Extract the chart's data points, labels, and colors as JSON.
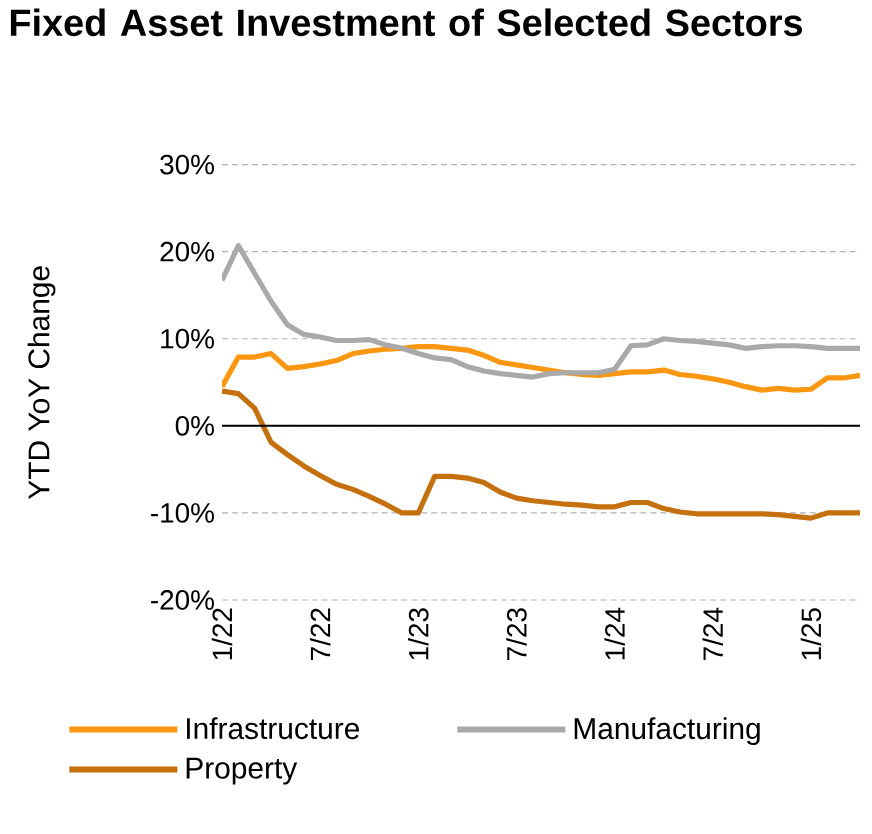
{
  "chart_data": {
    "type": "line",
    "title": "Fixed Asset Investment of Selected Sectors",
    "ylabel": "YTD YoY Change",
    "x": [
      "2022-01",
      "2022-02",
      "2022-03",
      "2022-04",
      "2022-05",
      "2022-06",
      "2022-07",
      "2022-08",
      "2022-09",
      "2022-10",
      "2022-11",
      "2022-12",
      "2023-01",
      "2023-02",
      "2023-03",
      "2023-04",
      "2023-05",
      "2023-06",
      "2023-07",
      "2023-08",
      "2023-09",
      "2023-10",
      "2023-11",
      "2023-12",
      "2024-01",
      "2024-02",
      "2024-03",
      "2024-04",
      "2024-05",
      "2024-06",
      "2024-07",
      "2024-08",
      "2024-09",
      "2024-10",
      "2024-11",
      "2024-12",
      "2025-01",
      "2025-02",
      "2025-03",
      "2025-04"
    ],
    "series": [
      {
        "name": "Infrastructure",
        "color": "#fb960f",
        "values": [
          4.5,
          7.9,
          7.9,
          8.3,
          6.6,
          6.8,
          7.1,
          7.5,
          8.3,
          8.6,
          8.8,
          8.9,
          9.1,
          9.1,
          8.9,
          8.7,
          8.1,
          7.3,
          7.0,
          6.7,
          6.4,
          6.1,
          5.9,
          5.8,
          6.0,
          6.2,
          6.2,
          6.4,
          5.9,
          5.7,
          5.4,
          5.0,
          4.5,
          4.1,
          4.3,
          4.1,
          4.2,
          5.5,
          5.5,
          5.8
        ]
      },
      {
        "name": "Manufacturing",
        "color": "#a9a9a9",
        "values": [
          16.7,
          20.7,
          17.5,
          14.3,
          11.6,
          10.5,
          10.2,
          9.8,
          9.8,
          9.9,
          9.3,
          8.9,
          8.3,
          7.8,
          7.6,
          6.8,
          6.3,
          6.0,
          5.8,
          5.6,
          6.0,
          6.1,
          6.1,
          6.1,
          6.5,
          9.2,
          9.3,
          10.0,
          9.8,
          9.7,
          9.5,
          9.3,
          8.9,
          9.1,
          9.2,
          9.2,
          9.1,
          8.9,
          8.9,
          8.9
        ]
      },
      {
        "name": "Property",
        "color": "#c5700e",
        "values": [
          4.0,
          3.7,
          2.0,
          -1.9,
          -3.3,
          -4.6,
          -5.7,
          -6.7,
          -7.3,
          -8.1,
          -9.0,
          -10.0,
          -10.0,
          -5.8,
          -5.8,
          -6.0,
          -6.5,
          -7.6,
          -8.3,
          -8.6,
          -8.8,
          -9.0,
          -9.1,
          -9.3,
          -9.3,
          -8.8,
          -8.8,
          -9.5,
          -9.9,
          -10.1,
          -10.1,
          -10.1,
          -10.1,
          -10.1,
          -10.2,
          -10.4,
          -10.6,
          -10.0,
          -10.0,
          -10.0
        ]
      }
    ],
    "xlim": [
      "2022-01",
      "2025-04"
    ],
    "xticks": [
      {
        "value": "2022-01",
        "label": "1/22"
      },
      {
        "value": "2022-07",
        "label": "7/22"
      },
      {
        "value": "2023-01",
        "label": "1/23"
      },
      {
        "value": "2023-07",
        "label": "7/23"
      },
      {
        "value": "2024-01",
        "label": "1/24"
      },
      {
        "value": "2024-07",
        "label": "7/24"
      },
      {
        "value": "2025-01",
        "label": "1/25"
      }
    ],
    "ylim": [
      -20,
      30
    ],
    "yticks": [
      {
        "value": -20,
        "label": "-20%"
      },
      {
        "value": -10,
        "label": "-10%"
      },
      {
        "value": 0,
        "label": "0%"
      },
      {
        "value": 10,
        "label": "10%"
      },
      {
        "value": 20,
        "label": "20%"
      },
      {
        "value": 30,
        "label": "30%"
      }
    ],
    "ref_lines": [
      {
        "axis": "y",
        "value": 0,
        "color": "#000000"
      }
    ],
    "grid": "y",
    "legend": "bottom",
    "marker": "none",
    "line_style": "solid"
  }
}
